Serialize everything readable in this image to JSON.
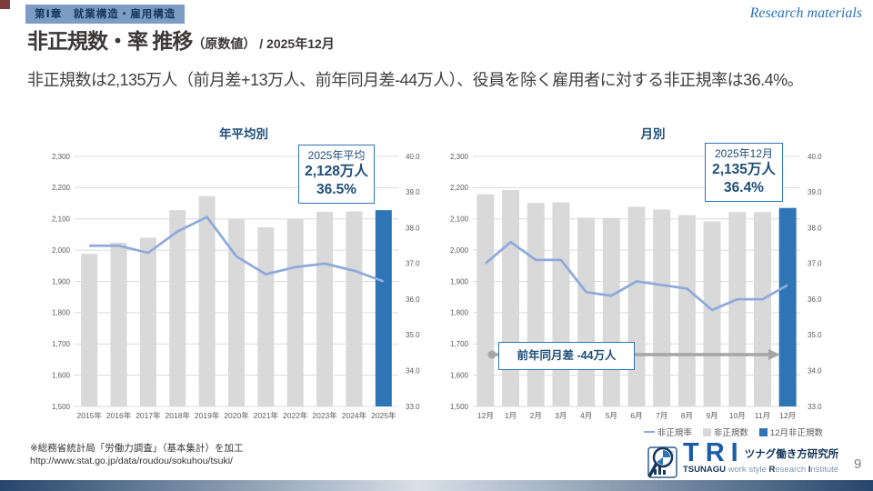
{
  "header": {
    "chapter_badge": "第Ⅰ章　就業構造・雇用構造",
    "watermark": "Research materials",
    "title_main": "非正規数・率 推移",
    "title_sub": "（原数値）",
    "title_date": " / 2025年12月",
    "lead": "非正規数は2,135万人（前月差+13万人、前年同月差-44万人）、役員を除く雇用者に対する非正規率は36.4%。"
  },
  "colors": {
    "bar_gray": "#D9D9D9",
    "bar_blue": "#2E75B6",
    "line_blue": "#8EAADC",
    "grid": "#DCDCDC",
    "axis_text": "#595959",
    "title_navy": "#1F4E79",
    "corner_red": "#7E3B3B",
    "arrow_gray": "#A6A6A6"
  },
  "chart_data": [
    {
      "type": "bar+line",
      "title": "年平均別",
      "categories": [
        "2015年",
        "2016年",
        "2017年",
        "2018年",
        "2019年",
        "2020年",
        "2021年",
        "2022年",
        "2023年",
        "2024年",
        "2025年"
      ],
      "series": [
        {
          "name": "非正規数",
          "type": "bar",
          "axis": "left",
          "values": [
            1988,
            2024,
            2040,
            2128,
            2173,
            2100,
            2073,
            2100,
            2123,
            2124,
            2128
          ]
        },
        {
          "name": "非正規率",
          "type": "line",
          "axis": "right",
          "values": [
            37.5,
            37.5,
            37.3,
            37.9,
            38.3,
            37.2,
            36.7,
            36.9,
            37.0,
            36.8,
            36.5
          ]
        }
      ],
      "highlight_index": 10,
      "left_axis": {
        "min": 1500,
        "max": 2300,
        "step": 100
      },
      "right_axis": {
        "min": 33.0,
        "max": 40.0,
        "step": 1.0
      },
      "annotation": {
        "line1": "2025年平均",
        "line2": "2,128万人",
        "line3": "36.5%"
      }
    },
    {
      "type": "bar+line",
      "title": "月別",
      "categories": [
        "12月",
        "1月",
        "2月",
        "3月",
        "4月",
        "5月",
        "6月",
        "7月",
        "8月",
        "9月",
        "10月",
        "11月",
        "12月"
      ],
      "series": [
        {
          "name": "非正規数",
          "type": "bar",
          "axis": "left",
          "values": [
            2179,
            2192,
            2151,
            2153,
            2104,
            2103,
            2139,
            2130,
            2112,
            2092,
            2122,
            2122,
            2135
          ]
        },
        {
          "name": "非正規率",
          "type": "line",
          "axis": "right",
          "values": [
            37.0,
            37.6,
            37.1,
            37.1,
            36.2,
            36.1,
            36.5,
            36.4,
            36.3,
            35.7,
            36.0,
            36.0,
            36.4
          ]
        }
      ],
      "highlight_index": 12,
      "left_axis": {
        "min": 1500,
        "max": 2300,
        "step": 100
      },
      "right_axis": {
        "min": 33.0,
        "max": 40.0,
        "step": 1.0
      },
      "annotation": {
        "line1": "2025年12月",
        "line2": "2,135万人",
        "line3": "36.4%"
      },
      "arrow_annotation": {
        "label": "前年同月差  -44万人"
      }
    }
  ],
  "legend": [
    {
      "label": "非正規率",
      "marker": "line"
    },
    {
      "label": "非正規数",
      "marker": "gray"
    },
    {
      "label": "12月非正規数",
      "marker": "blue"
    }
  ],
  "footer": {
    "source_line1": "※総務省統計局「労働力調査」（基本集計）を加工",
    "source_line2": "http://www.stat.go.jp/data/roudou/sokuhou/tsuki/",
    "logo": {
      "tri": "TRI",
      "jp": "ツナグ働き方研究所",
      "en_bold": "TSUNAGU",
      "en_mid": " work style ",
      "en_r1": "R",
      "en_r2": "esearch ",
      "en_i1": "I",
      "en_i2": "nstitute"
    },
    "page_number": "9"
  }
}
